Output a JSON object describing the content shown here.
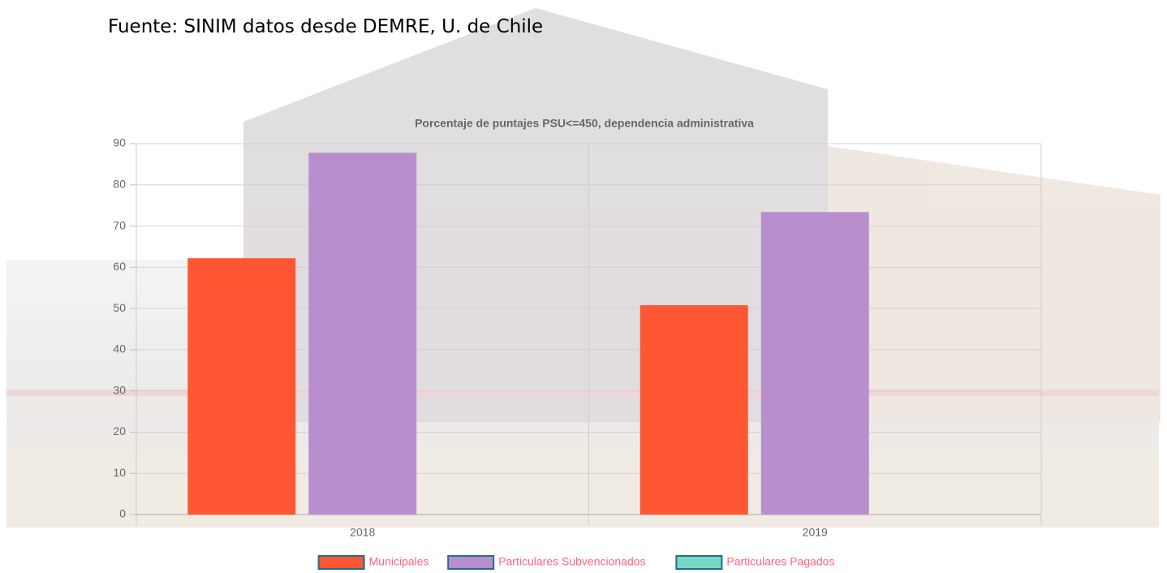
{
  "source": "Fuente: SINIM datos desde DEMRE, U. de Chile",
  "chart_data": {
    "type": "bar",
    "title": "Porcentaje de puntajes PSU<=450, dependencia administrativa",
    "categories": [
      "2018",
      "2019"
    ],
    "series": [
      {
        "name": "Municipales",
        "color": "#ff5733",
        "values": [
          62.2,
          50.8
        ]
      },
      {
        "name": "Particulares Subvencionados",
        "color": "#b98ecf",
        "values": [
          87.8,
          73.4
        ]
      },
      {
        "name": "Particulares Pagados",
        "color": "#76d7c4",
        "values": [
          null,
          null
        ]
      }
    ],
    "ylim": [
      0,
      90
    ],
    "yticks": [
      0,
      10,
      20,
      30,
      40,
      50,
      60,
      70,
      80,
      90
    ],
    "grid": true
  }
}
